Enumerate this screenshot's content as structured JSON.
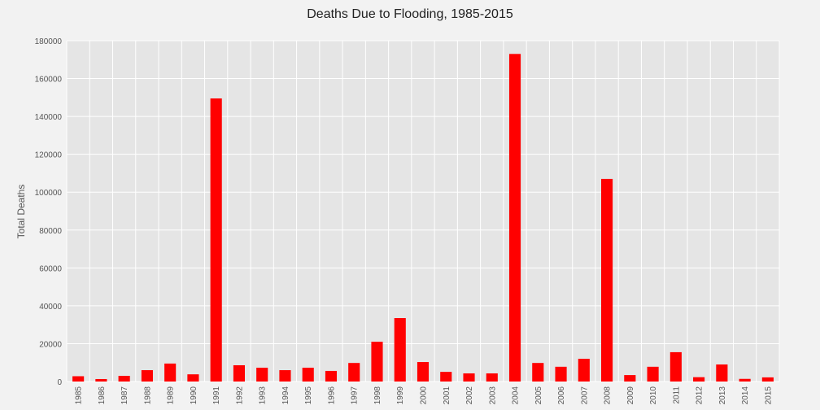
{
  "chart_data": {
    "type": "bar",
    "title": "Deaths Due to Flooding, 1985-2015",
    "xlabel": "",
    "ylabel": "Total Deaths",
    "ylim": [
      0,
      180000
    ],
    "yticks": [
      0,
      20000,
      40000,
      60000,
      80000,
      100000,
      120000,
      140000,
      160000,
      180000
    ],
    "grid": true,
    "bar_color": "#ff0000",
    "plot_background": "#e5e5e5",
    "grid_color": "#ffffff",
    "categories": [
      "1985",
      "1986",
      "1987",
      "1988",
      "1989",
      "1990",
      "1991",
      "1992",
      "1993",
      "1994",
      "1995",
      "1996",
      "1997",
      "1998",
      "1999",
      "2000",
      "2001",
      "2002",
      "2003",
      "2004",
      "2005",
      "2006",
      "2007",
      "2008",
      "2009",
      "2010",
      "2011",
      "2012",
      "2013",
      "2014",
      "2015"
    ],
    "values": [
      2800,
      1300,
      3000,
      6000,
      9500,
      3800,
      149500,
      8600,
      7300,
      6000,
      7300,
      5600,
      9800,
      21000,
      33500,
      10300,
      5100,
      4300,
      4300,
      173000,
      9800,
      7800,
      12000,
      107000,
      3400,
      7800,
      15500,
      2300,
      9000,
      1400,
      2200
    ]
  }
}
